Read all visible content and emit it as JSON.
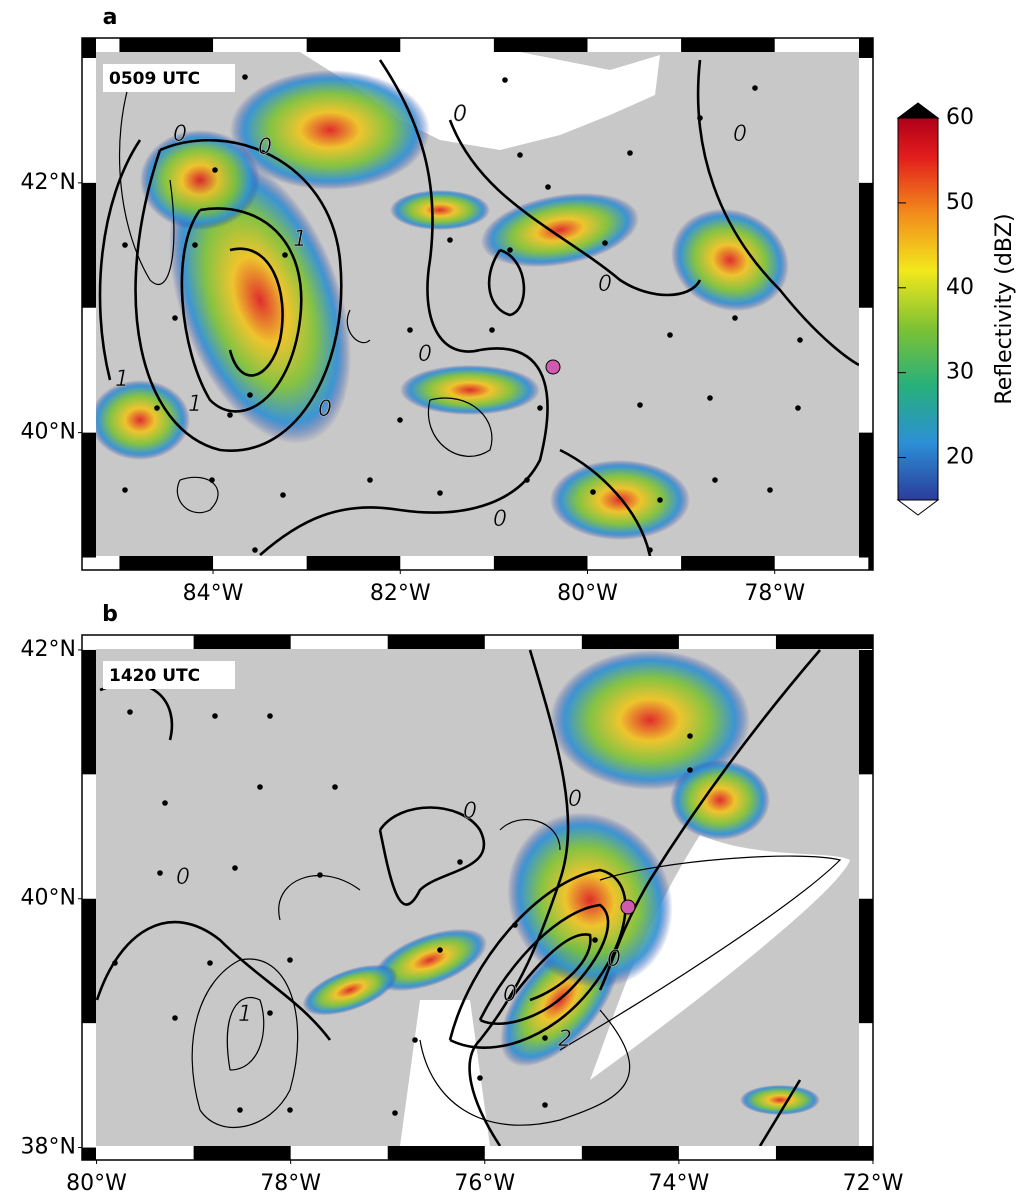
{
  "panels": [
    {
      "label": "a",
      "time": "0509 UTC",
      "xlim": [
        -85.4,
        -76.95
      ],
      "ylim": [
        38.9,
        43.16
      ],
      "xticks": [
        {
          "value": -84,
          "label": "84°W"
        },
        {
          "value": -82,
          "label": "82°W"
        },
        {
          "value": -80,
          "label": "80°W"
        },
        {
          "value": -78,
          "label": "78°W"
        }
      ],
      "yticks": [
        {
          "value": 42,
          "label": "42°N"
        },
        {
          "value": 40,
          "label": "40°N"
        }
      ],
      "contour_labels": [
        "0",
        "0",
        "0",
        "0",
        "0",
        "0",
        "0",
        "0",
        "1",
        "1",
        "1"
      ]
    },
    {
      "label": "b",
      "time": "1420 UTC",
      "xlim": [
        -80.15,
        -72
      ],
      "ylim": [
        37.9,
        42.12
      ],
      "xticks": [
        {
          "value": -80,
          "label": "80°W"
        },
        {
          "value": -78,
          "label": "78°W"
        },
        {
          "value": -76,
          "label": "76°W"
        },
        {
          "value": -74,
          "label": "74°W"
        },
        {
          "value": -72,
          "label": "72°W"
        }
      ],
      "yticks": [
        {
          "value": 42,
          "label": "42°N"
        },
        {
          "value": 40,
          "label": "40°N"
        },
        {
          "value": 38,
          "label": "38°N"
        }
      ],
      "contour_labels": [
        "0",
        "0",
        "0",
        "0",
        "0",
        "1",
        "2"
      ]
    }
  ],
  "colorbar": {
    "label": "Reflectivity (dBZ)",
    "lim": [
      15,
      60
    ],
    "ticks": [
      20,
      30,
      40,
      50,
      60
    ]
  }
}
